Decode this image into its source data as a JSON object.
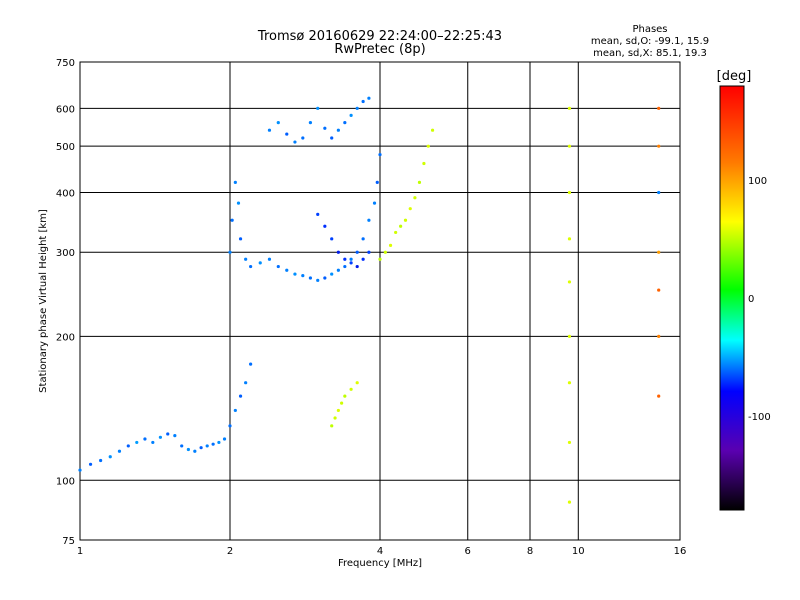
{
  "chart_data": {
    "type": "scatter",
    "title": "Tromsø 20160629 22:24:00–22:25:43",
    "subtitle": "RwPretec (8p)",
    "xlabel": "Frequency [MHz]",
    "ylabel": "Stationary phase Virtual Height [km]",
    "xscale": "log",
    "yscale": "log",
    "xlim": [
      1,
      16
    ],
    "ylim": [
      75,
      750
    ],
    "x_ticks": [
      1,
      2,
      4,
      6,
      8,
      10,
      16
    ],
    "y_ticks": [
      75,
      100,
      200,
      300,
      400,
      500,
      600,
      750
    ],
    "grid": true,
    "legend": {
      "title": "Phases",
      "lines": [
        "mean, sd,O: -99.1, 15.9",
        "mean, sd,X:  85.1, 19.3"
      ],
      "placement": "top-right"
    },
    "colorbar": {
      "label": "[deg]",
      "range": [
        -180,
        180
      ],
      "ticks": [
        100,
        0,
        -100
      ]
    },
    "series": [
      {
        "points": [
          [
            1.0,
            105,
            -100
          ],
          [
            1.05,
            108,
            -110
          ],
          [
            1.1,
            110,
            -105
          ],
          [
            1.15,
            112,
            -95
          ],
          [
            1.2,
            115,
            -100
          ],
          [
            1.25,
            118,
            -110
          ],
          [
            1.3,
            120,
            -90
          ],
          [
            1.35,
            122,
            -105
          ],
          [
            1.4,
            120,
            -100
          ],
          [
            1.45,
            123,
            -95
          ],
          [
            1.5,
            125,
            -110
          ],
          [
            1.55,
            124,
            -100
          ],
          [
            1.6,
            118,
            -105
          ],
          [
            1.65,
            116,
            -95
          ],
          [
            1.7,
            115,
            -100
          ],
          [
            1.75,
            117,
            -110
          ],
          [
            1.8,
            118,
            -100
          ],
          [
            1.85,
            119,
            -105
          ],
          [
            1.9,
            120,
            -95
          ],
          [
            1.95,
            122,
            -100
          ],
          [
            2.0,
            130,
            -105
          ],
          [
            2.05,
            140,
            -100
          ],
          [
            2.1,
            150,
            -110
          ],
          [
            2.15,
            160,
            -100
          ],
          [
            2.2,
            175,
            -105
          ]
        ]
      },
      {
        "points": [
          [
            2.0,
            300,
            -100
          ],
          [
            2.02,
            350,
            -105
          ],
          [
            2.05,
            420,
            -100
          ],
          [
            2.08,
            380,
            -95
          ],
          [
            2.1,
            320,
            -110
          ],
          [
            2.15,
            290,
            -100
          ],
          [
            2.2,
            280,
            -105
          ],
          [
            2.3,
            285,
            -95
          ],
          [
            2.4,
            290,
            -100
          ],
          [
            2.5,
            280,
            -105
          ],
          [
            2.6,
            275,
            -100
          ],
          [
            2.7,
            270,
            -95
          ],
          [
            2.8,
            268,
            -100
          ],
          [
            2.9,
            265,
            -105
          ],
          [
            3.0,
            262,
            -100
          ],
          [
            3.1,
            265,
            -110
          ],
          [
            3.2,
            270,
            -95
          ],
          [
            3.3,
            275,
            -100
          ],
          [
            3.4,
            280,
            -105
          ],
          [
            3.5,
            290,
            -100
          ],
          [
            3.6,
            300,
            -110
          ],
          [
            3.7,
            320,
            -105
          ],
          [
            3.8,
            350,
            -100
          ],
          [
            3.9,
            380,
            -100
          ],
          [
            3.95,
            420,
            -110
          ],
          [
            4.0,
            480,
            -105
          ]
        ]
      },
      {
        "points": [
          [
            2.4,
            540,
            -100
          ],
          [
            2.5,
            560,
            -95
          ],
          [
            2.6,
            530,
            -110
          ],
          [
            2.7,
            510,
            -100
          ],
          [
            2.8,
            520,
            -105
          ],
          [
            2.9,
            560,
            -100
          ],
          [
            3.0,
            600,
            -95
          ],
          [
            3.1,
            545,
            -105
          ],
          [
            3.2,
            520,
            -110
          ],
          [
            3.3,
            540,
            -100
          ],
          [
            3.4,
            560,
            -105
          ],
          [
            3.5,
            580,
            -95
          ],
          [
            3.6,
            600,
            -100
          ],
          [
            3.7,
            620,
            -105
          ],
          [
            3.8,
            630,
            -100
          ]
        ]
      },
      {
        "points": [
          [
            3.0,
            360,
            -120
          ],
          [
            3.1,
            340,
            -125
          ],
          [
            3.2,
            320,
            -120
          ],
          [
            3.3,
            300,
            -130
          ],
          [
            3.4,
            290,
            -125
          ],
          [
            3.5,
            285,
            -120
          ],
          [
            3.6,
            280,
            -130
          ],
          [
            3.7,
            290,
            -125
          ],
          [
            3.8,
            300,
            -120
          ]
        ]
      },
      {
        "points": [
          [
            4.0,
            290,
            80
          ],
          [
            4.1,
            300,
            85
          ],
          [
            4.2,
            310,
            90
          ],
          [
            4.3,
            330,
            85
          ],
          [
            4.4,
            340,
            80
          ],
          [
            4.5,
            350,
            85
          ],
          [
            4.6,
            370,
            90
          ],
          [
            4.7,
            390,
            85
          ],
          [
            4.8,
            420,
            80
          ],
          [
            4.9,
            460,
            85
          ],
          [
            5.0,
            500,
            90
          ],
          [
            5.1,
            540,
            85
          ]
        ]
      },
      {
        "points": [
          [
            3.2,
            130,
            80
          ],
          [
            3.25,
            135,
            85
          ],
          [
            3.3,
            140,
            90
          ],
          [
            3.35,
            145,
            85
          ],
          [
            3.4,
            150,
            80
          ],
          [
            3.5,
            155,
            85
          ],
          [
            3.6,
            160,
            90
          ]
        ]
      },
      {
        "points": [
          [
            9.6,
            90,
            90
          ],
          [
            9.6,
            120,
            90
          ],
          [
            9.6,
            160,
            90
          ],
          [
            9.6,
            200,
            90
          ],
          [
            9.6,
            260,
            90
          ],
          [
            9.6,
            320,
            90
          ],
          [
            9.6,
            400,
            90
          ],
          [
            9.6,
            500,
            90
          ],
          [
            9.6,
            600,
            90
          ],
          [
            14.5,
            150,
            150
          ],
          [
            14.5,
            200,
            140
          ],
          [
            14.5,
            250,
            150
          ],
          [
            14.5,
            300,
            130
          ],
          [
            14.5,
            400,
            -100
          ],
          [
            14.5,
            500,
            140
          ],
          [
            14.5,
            600,
            150
          ]
        ]
      }
    ]
  }
}
